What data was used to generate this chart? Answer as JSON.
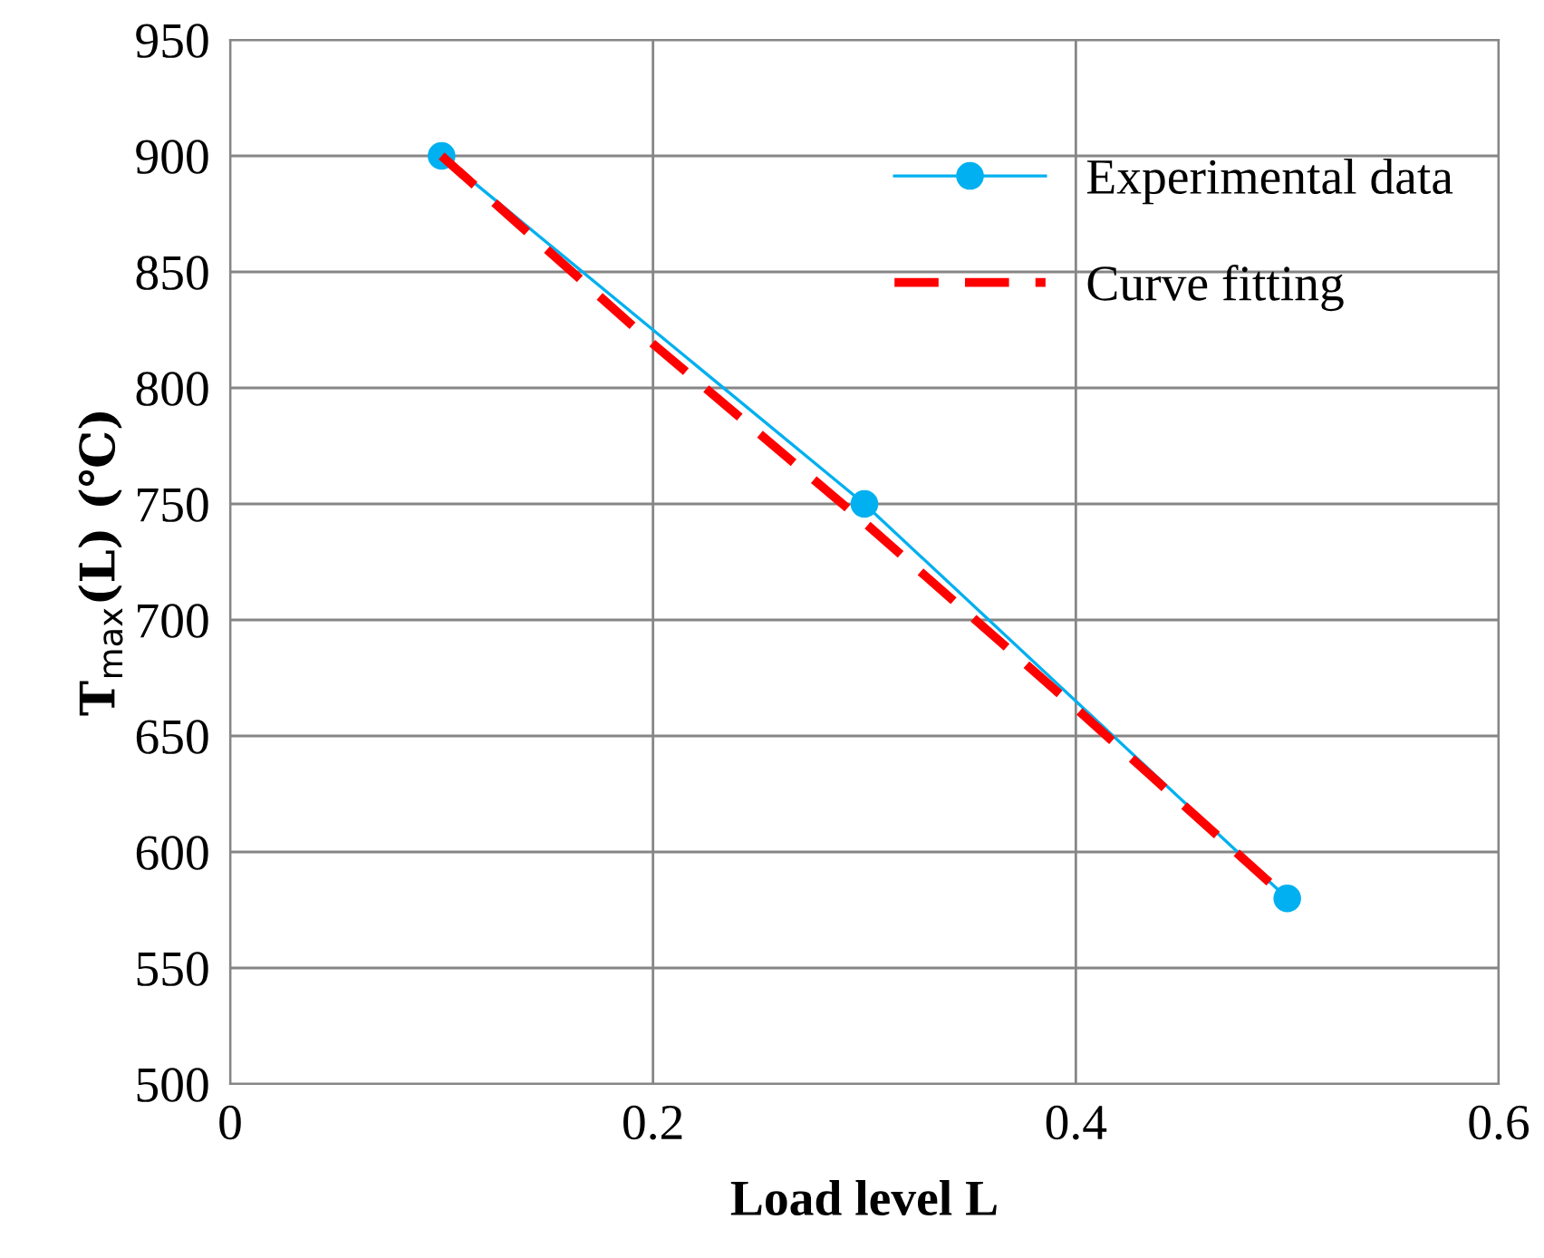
{
  "chart_data": {
    "type": "line",
    "xlabel": "Load level L",
    "ylabel": "T$_{max}$(L) (℃)",
    "series": [
      {
        "name": "Experimental data",
        "color": "#00b0f0",
        "x": [
          0.1,
          0.3,
          0.5
        ],
        "values": [
          900,
          750,
          580
        ],
        "marker": "circle",
        "line_style": "solid"
      },
      {
        "name": "Curve fitting",
        "color": "#ff0000",
        "x": [
          0.1,
          0.2,
          0.3,
          0.4,
          0.5
        ],
        "values": [
          900,
          819,
          742,
          662,
          580
        ],
        "marker": "none",
        "line_style": "dashed"
      }
    ],
    "xlim": [
      0,
      0.6
    ],
    "xticks": [
      0,
      0.2,
      0.4,
      0.6
    ],
    "ylim": [
      500,
      950
    ],
    "yticks": [
      500,
      550,
      600,
      650,
      700,
      750,
      800,
      850,
      900,
      950
    ],
    "grid": true,
    "legend": "top right"
  }
}
